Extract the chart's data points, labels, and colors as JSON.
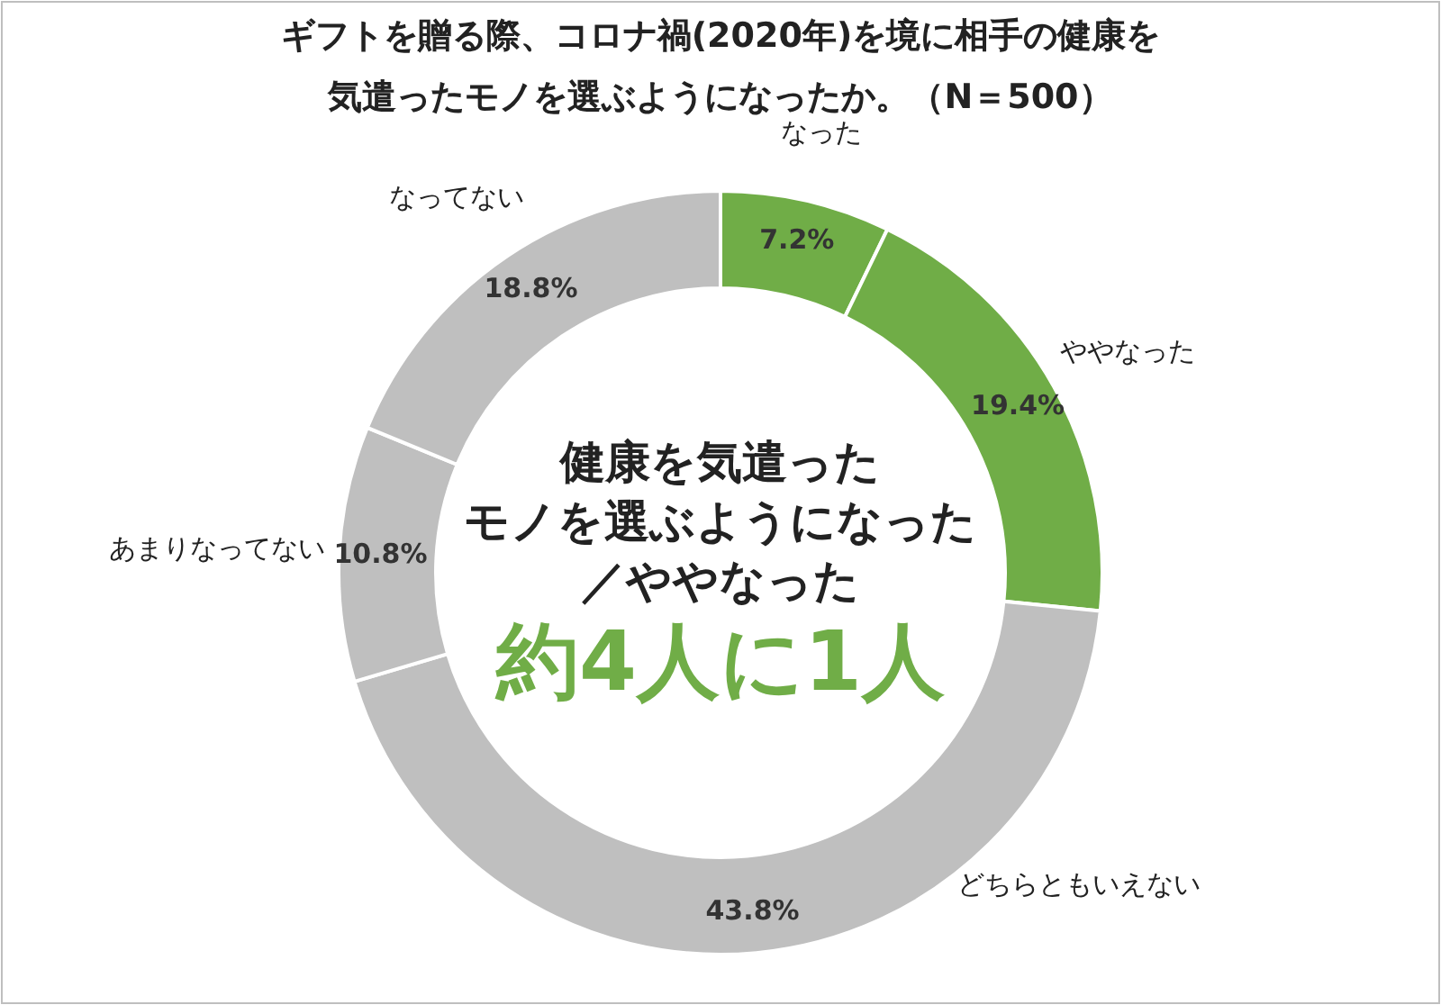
{
  "chart_data": {
    "type": "donut",
    "title": "ギフトを贈る際、コロナ禍(2020年)を境に相手の健康を",
    "subtitle": "気遣ったモノを選ぶようになったか。（N＝500）",
    "categories": [
      "なった",
      "ややなった",
      "どちらともいえない",
      "あまりなってない",
      "なってない"
    ],
    "values": [
      7.2,
      19.4,
      43.8,
      10.8,
      18.8
    ],
    "value_labels": [
      "7.2%",
      "19.4%",
      "43.8%",
      "10.8%",
      "18.8%"
    ],
    "colors": [
      "#70ad47",
      "#70ad47",
      "#bfbfbf",
      "#bfbfbf",
      "#bfbfbf"
    ],
    "annotations": [
      "健康を気遣った",
      "モノを選ぶようになった",
      "／ややなった",
      "約4人に1人"
    ]
  }
}
